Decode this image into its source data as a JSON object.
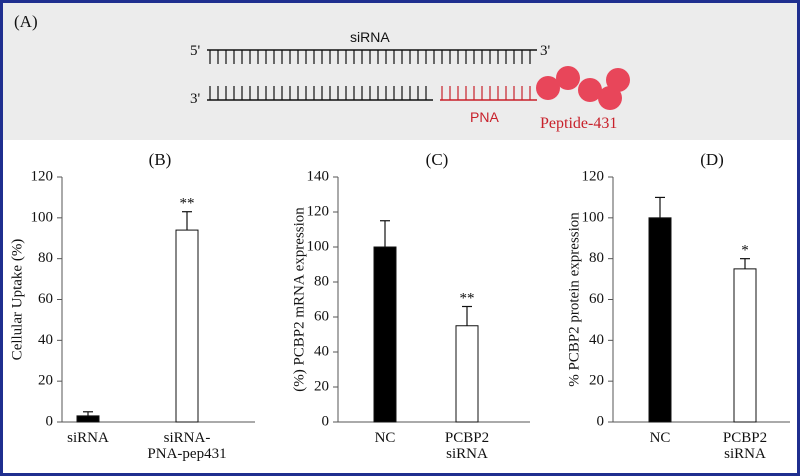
{
  "diagram": {
    "panel": "(A)",
    "top_five_prime": "5'",
    "top_label": "siRNA",
    "top_three_prime": "3'",
    "bottom_three_prime": "3'",
    "pna_label": "PNA",
    "peptide_label": "Peptide-431"
  },
  "chart_data": [
    {
      "type": "bar",
      "title": "(B)",
      "y_label": "Cellular Uptake (%)",
      "categories": [
        "siRNA",
        "siRNA-\nPNA-pep431"
      ],
      "values": [
        3,
        94
      ],
      "errors": [
        2,
        9
      ],
      "colors": [
        "#000000",
        "#ffffff"
      ],
      "significance": [
        null,
        "**"
      ],
      "ylim": [
        0,
        120
      ],
      "yticks": [
        0,
        20,
        40,
        60,
        80,
        100,
        120
      ]
    },
    {
      "type": "bar",
      "title": "(C)",
      "y_label": "(%) PCBP2 mRNA expression",
      "categories": [
        "NC",
        "PCBP2\nsiRNA"
      ],
      "values": [
        100,
        55
      ],
      "errors": [
        15,
        11
      ],
      "colors": [
        "#000000",
        "#ffffff"
      ],
      "significance": [
        null,
        "**"
      ],
      "ylim": [
        0,
        140
      ],
      "yticks": [
        0,
        20,
        40,
        60,
        80,
        100,
        120,
        140
      ]
    },
    {
      "type": "bar",
      "title": "(D)",
      "y_label": "% PCBP2 protein expression",
      "categories": [
        "NC",
        "PCBP2\nsiRNA"
      ],
      "values": [
        100,
        75
      ],
      "errors": [
        10,
        5
      ],
      "colors": [
        "#000000",
        "#ffffff"
      ],
      "significance": [
        null,
        "*"
      ],
      "ylim": [
        0,
        120
      ],
      "yticks": [
        0,
        20,
        40,
        60,
        80,
        100,
        120
      ]
    }
  ]
}
